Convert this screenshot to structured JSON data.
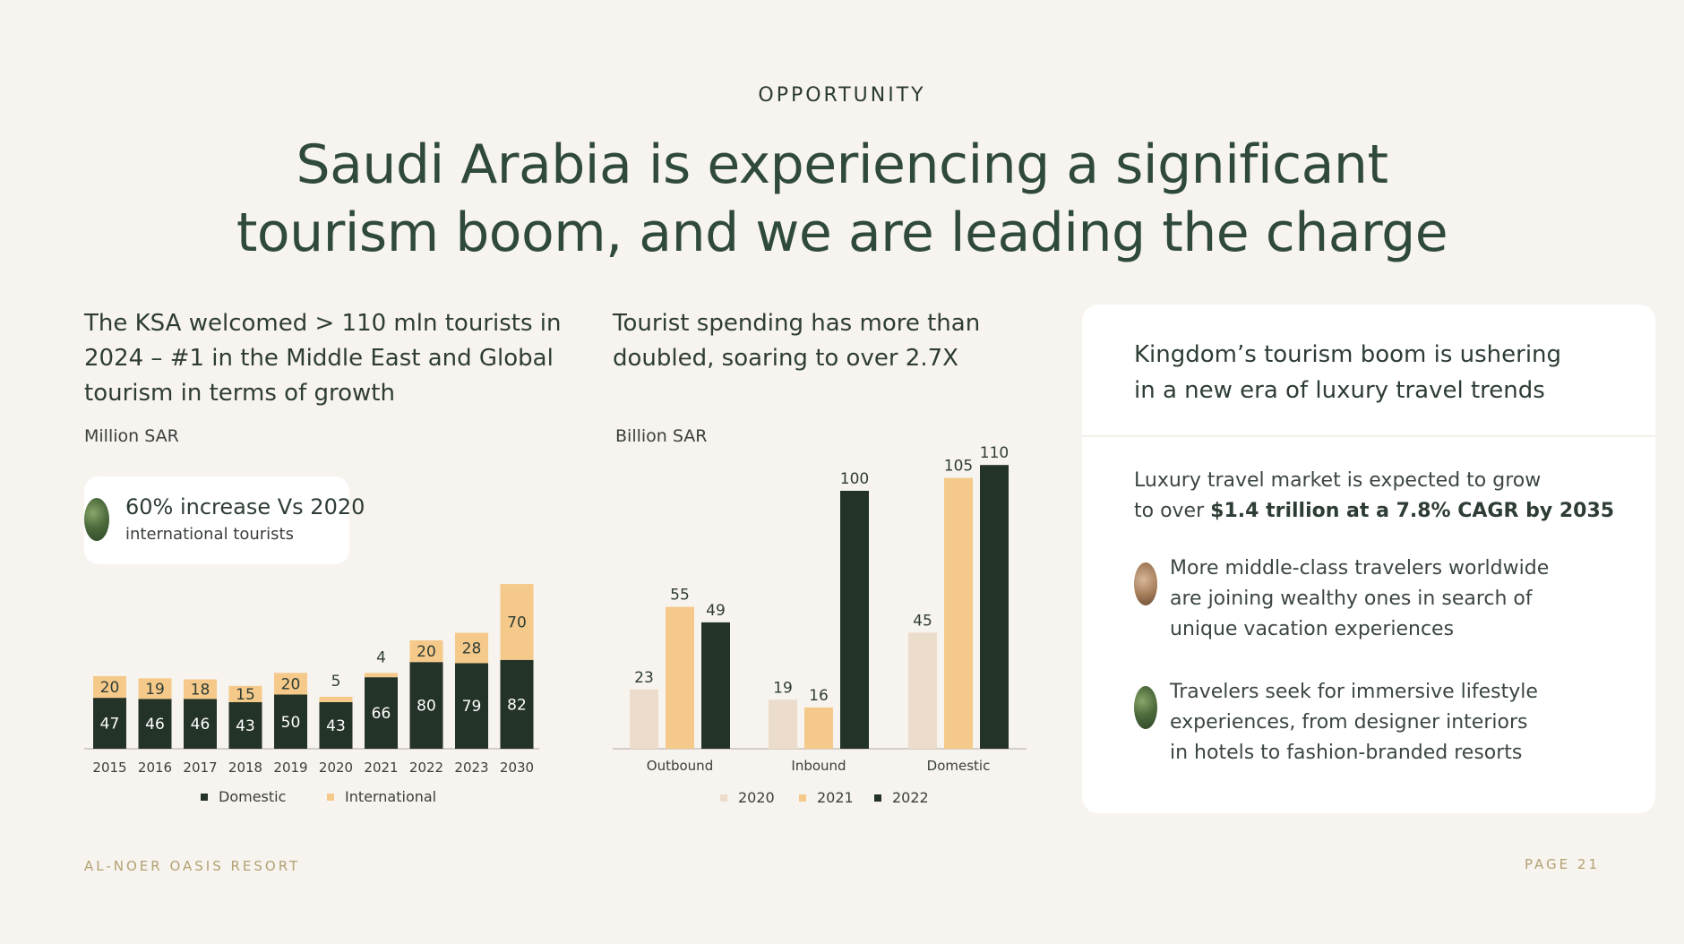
{
  "eyebrow": "OPPORTUNITY",
  "title": {
    "line1": "Saudi Arabia is experiencing a significant",
    "line2": "tourism boom, and we are leading the charge"
  },
  "left": {
    "heading": {
      "line1": "The KSA welcomed > 110 mln tourists in",
      "line2": "2024 – #1  in the Middle East and Global",
      "line3": "tourism in terms of growth"
    },
    "unit": "Million SAR",
    "callout": {
      "big": "60% increase Vs 2020",
      "small": "international tourists"
    },
    "legend": {
      "domestic": "Domestic",
      "international": "International"
    }
  },
  "middle": {
    "heading": {
      "line1": "Tourist spending has more than",
      "line2": "doubled, soaring to over 2.7X"
    },
    "unit": "Billion SAR",
    "legend": {
      "s2020": "2020",
      "s2021": "2021",
      "s2022": "2022"
    }
  },
  "right": {
    "heading": {
      "line1": "Kingdom’s tourism boom is ushering",
      "line2": "in a new era of luxury travel trends"
    },
    "lead_line1": "Luxury travel market is expected to grow",
    "lead_prefix": "to over ",
    "lead_bold": "$1.4 trillion at a 7.8% CAGR by 2035",
    "bullet1": {
      "line1": "More middle-class travelers worldwide",
      "line2": "are joining wealthy ones in search of",
      "line3": "unique vacation experiences"
    },
    "bullet2": {
      "line1": "Travelers seek for immersive lifestyle",
      "line2": "experiences, from designer interiors",
      "line3": "in hotels to fashion-branded resorts"
    }
  },
  "footer": {
    "brand": "AL-NOER OASIS RESORT",
    "page": "PAGE  21"
  },
  "colors": {
    "dark": "#243328",
    "light": "#f5c98a",
    "pale": "#ecdccb",
    "accent": "#b2a272"
  },
  "chart_data": [
    {
      "type": "bar",
      "stacked": true,
      "categories": [
        "2015",
        "2016",
        "2017",
        "2018",
        "2019",
        "2020",
        "2021",
        "2022",
        "2023",
        "2030"
      ],
      "series": [
        {
          "name": "Domestic",
          "values": [
            47,
            46,
            46,
            43,
            50,
            43,
            66,
            80,
            79,
            82
          ]
        },
        {
          "name": "International",
          "values": [
            20,
            19,
            18,
            15,
            20,
            5,
            4,
            20,
            28,
            70
          ]
        }
      ],
      "ylabel": "Million SAR",
      "legend_position": "bottom"
    },
    {
      "type": "bar",
      "categories": [
        "Outbound",
        "Inbound",
        "Domestic"
      ],
      "series": [
        {
          "name": "2020",
          "values": [
            23,
            19,
            45
          ]
        },
        {
          "name": "2021",
          "values": [
            55,
            16,
            105
          ]
        },
        {
          "name": "2022",
          "values": [
            49,
            100,
            110
          ]
        }
      ],
      "ylabel": "Billion SAR",
      "legend_position": "bottom"
    }
  ]
}
